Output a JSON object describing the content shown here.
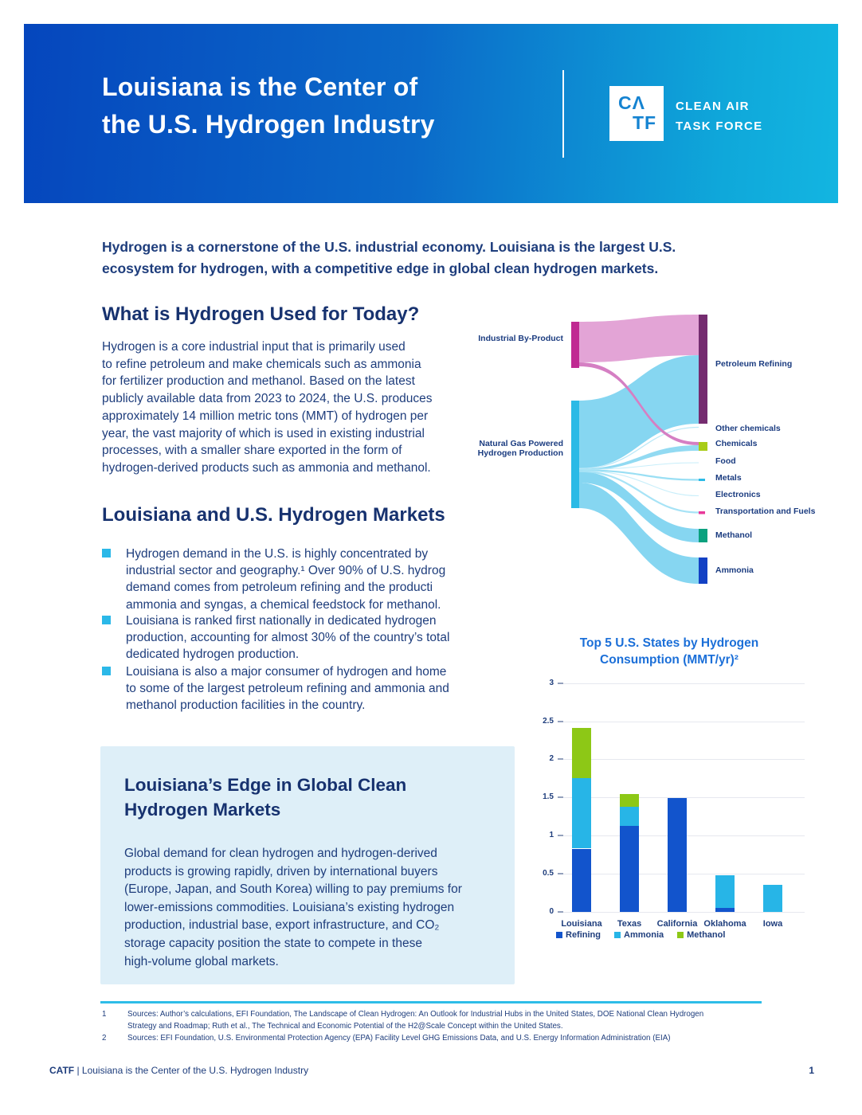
{
  "header": {
    "title_lines": [
      "Louisiana is the Center of",
      "the U.S. Hydrogen Industry"
    ],
    "logo": {
      "box_top": "CΛ",
      "box_bottom": "TF",
      "name_lines": [
        "CLEAN AIR",
        "TASK FORCE"
      ]
    },
    "gradient": {
      "left": "#0546BD",
      "right": "#13B5E1"
    }
  },
  "intro": {
    "lines": [
      "Hydrogen is a cornerstone of the U.S. industrial economy. Louisiana is the largest U.S.",
      "ecosystem for hydrogen, with a competitive edge in global clean hydrogen markets."
    ]
  },
  "section_what": {
    "heading": "What is Hydrogen Used for Today?",
    "body_lines": [
      "Hydrogen is a core industrial input that is primarily used",
      "to refine petroleum and make chemicals such as ammonia",
      "for fertilizer production and methanol. Based on the latest",
      "publicly available data from 2023 to 2024, the U.S. produces",
      "approximately 14 million metric tons (MMT) of hydrogen per",
      "year, the vast majority of which is used in existing industrial",
      "processes, with a smaller share exported in the form of",
      "hydrogen-derived products such as ammonia and methanol."
    ]
  },
  "sankey": {
    "left_labels": {
      "industrial_byproduct": "Industrial By-Product",
      "natural_gas_lines": [
        "Natural Gas Powered",
        "Hydrogen Production"
      ]
    },
    "right_labels": {
      "petroleum_refining": "Petroleum Refining",
      "other_chemicals": "Other chemicals",
      "chemicals": "Chemicals",
      "food": "Food",
      "metals": "Metals",
      "electronics": "Electronics",
      "transportation": "Transportation and Fuels",
      "methanol": "Methanol",
      "ammonia": "Ammonia"
    },
    "node_colors": {
      "industrial_byproduct": "#C02A92",
      "natural_gas": "#2BBAE6",
      "petroleum_refining": "#752C70",
      "chemicals": "#A8CC18",
      "metals": "#2BBAE6",
      "transportation": "#E8399A",
      "methanol": "#0AA17E",
      "ammonia": "#1341C4"
    },
    "flow_colors": {
      "byproduct_flow": "#E3A4D6",
      "byproduct_thin_flow": "#D57FC3",
      "hydrogen_flow": "#86D6F1"
    },
    "flows": [
      {
        "source": "Industrial By-Product",
        "target": "Petroleum Refining",
        "size": "large"
      },
      {
        "source": "Industrial By-Product",
        "target": "Chemicals",
        "size": "small"
      },
      {
        "source": "Natural Gas Powered Hydrogen Production",
        "target": "Petroleum Refining",
        "size": "large"
      },
      {
        "source": "Natural Gas Powered Hydrogen Production",
        "target": "Other chemicals",
        "size": "small"
      },
      {
        "source": "Natural Gas Powered Hydrogen Production",
        "target": "Chemicals",
        "size": "small"
      },
      {
        "source": "Natural Gas Powered Hydrogen Production",
        "target": "Food",
        "size": "small"
      },
      {
        "source": "Natural Gas Powered Hydrogen Production",
        "target": "Metals",
        "size": "small"
      },
      {
        "source": "Natural Gas Powered Hydrogen Production",
        "target": "Electronics",
        "size": "small"
      },
      {
        "source": "Natural Gas Powered Hydrogen Production",
        "target": "Transportation and Fuels",
        "size": "small"
      },
      {
        "source": "Natural Gas Powered Hydrogen Production",
        "target": "Methanol",
        "size": "medium"
      },
      {
        "source": "Natural Gas Powered Hydrogen Production",
        "target": "Ammonia",
        "size": "medium"
      }
    ]
  },
  "section_markets": {
    "heading": "Louisiana and U.S. Hydrogen Markets",
    "bullet_color": "#2BB8E8",
    "bullets": [
      {
        "lines": [
          "Hydrogen demand in the U.S. is highly concentrated by",
          "industrial sector and geography.¹ Over 90% of U.S. hydrog",
          "demand comes from petroleum refining and the producti",
          "ammonia and syngas, a chemical feedstock for methanol."
        ]
      },
      {
        "lines": [
          "Louisiana is ranked first nationally in dedicated hydrogen",
          "production, accounting for almost 30% of the country’s total",
          "dedicated hydrogen production."
        ]
      },
      {
        "lines": [
          "Louisiana is also a major consumer of hydrogen and home",
          "to some of the largest petroleum refining and ammonia and",
          "methanol production facilities in the country."
        ]
      }
    ]
  },
  "callout": {
    "bg": "#DEEFF8",
    "heading_lines": [
      "Louisiana’s Edge in Global Clean",
      "Hydrogen Markets"
    ],
    "body_lines": [
      "Global demand for clean hydrogen and hydrogen-derived",
      "products is growing rapidly, driven by international buyers",
      "(Europe, Japan, and South Korea) willing to pay premiums for",
      "lower-emissions commodities. Louisiana’s existing hydrogen",
      "production, industrial base, export infrastructure, and CO₂",
      "storage capacity position the state to compete in these",
      "high-volume global markets."
    ]
  },
  "chart_data": {
    "type": "bar",
    "stacked": true,
    "title_lines": [
      "Top 5 U.S. States by Hydrogen",
      "Consumption (MMT/yr)²"
    ],
    "title_color": "#1B6FD8",
    "categories": [
      "Louisiana",
      "Texas",
      "California",
      "Oklahoma",
      "Iowa"
    ],
    "series": [
      {
        "name": "Refining",
        "color": "#1254CC",
        "values": [
          0.83,
          1.13,
          1.49,
          0.05,
          0
        ]
      },
      {
        "name": "Ammonia",
        "color": "#27B5E7",
        "values": [
          0.92,
          0.25,
          0,
          0.43,
          0.36
        ]
      },
      {
        "name": "Methanol",
        "color": "#8DC816",
        "values": [
          0.66,
          0.17,
          0,
          0,
          0
        ]
      }
    ],
    "totals": [
      2.41,
      1.55,
      1.49,
      0.48,
      0.36
    ],
    "ylim": [
      0,
      3
    ],
    "yticks": [
      0,
      0.5,
      1,
      1.5,
      2,
      2.5,
      3
    ],
    "grid": true,
    "legend_position": "bottom"
  },
  "footnotes": {
    "items": [
      {
        "num": "1",
        "lines": [
          "Sources: Author’s calculations, EFI Foundation, The Landscape of Clean Hydrogen: An Outlook for Industrial Hubs in the United States, DOE National Clean Hydrogen",
          "Strategy and Roadmap; Ruth et al., The Technical and Economic Potential of the H2@Scale Concept within the United States."
        ]
      },
      {
        "num": "2",
        "lines": [
          "Sources: EFI Foundation, U.S. Environmental Protection Agency (EPA) Facility Level GHG Emissions Data, and U.S. Energy Information Administration (EIA)"
        ]
      }
    ]
  },
  "footer": {
    "brand": "CATF",
    "separator": " | ",
    "title": "Louisiana is the Center of the U.S. Hydrogen Industry",
    "page": "1"
  }
}
